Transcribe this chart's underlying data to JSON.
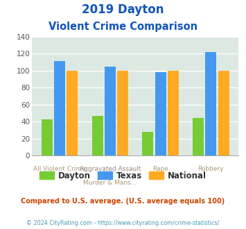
{
  "title_line1": "2019 Dayton",
  "title_line2": "Violent Crime Comparison",
  "cat_labels_top": [
    "",
    "Aggravated Assault",
    "",
    ""
  ],
  "cat_labels_bot": [
    "All Violent Crime",
    "Murder & Mans...",
    "Rape",
    "Robbery"
  ],
  "dayton": [
    43,
    47,
    28,
    44
  ],
  "texas": [
    111,
    105,
    98,
    122
  ],
  "national": [
    100,
    100,
    100,
    100
  ],
  "dayton_color": "#77cc33",
  "texas_color": "#4499ee",
  "national_color": "#ffaa22",
  "bg_color": "#dce9e2",
  "ylim": [
    0,
    140
  ],
  "yticks": [
    0,
    20,
    40,
    60,
    80,
    100,
    120,
    140
  ],
  "footnote": "Compared to U.S. average. (U.S. average equals 100)",
  "copyright": "© 2024 CityRating.com - https://www.cityrating.com/crime-statistics/",
  "title_color": "#1155bb",
  "footnote_color": "#cc4400",
  "copyright_color": "#4499bb"
}
